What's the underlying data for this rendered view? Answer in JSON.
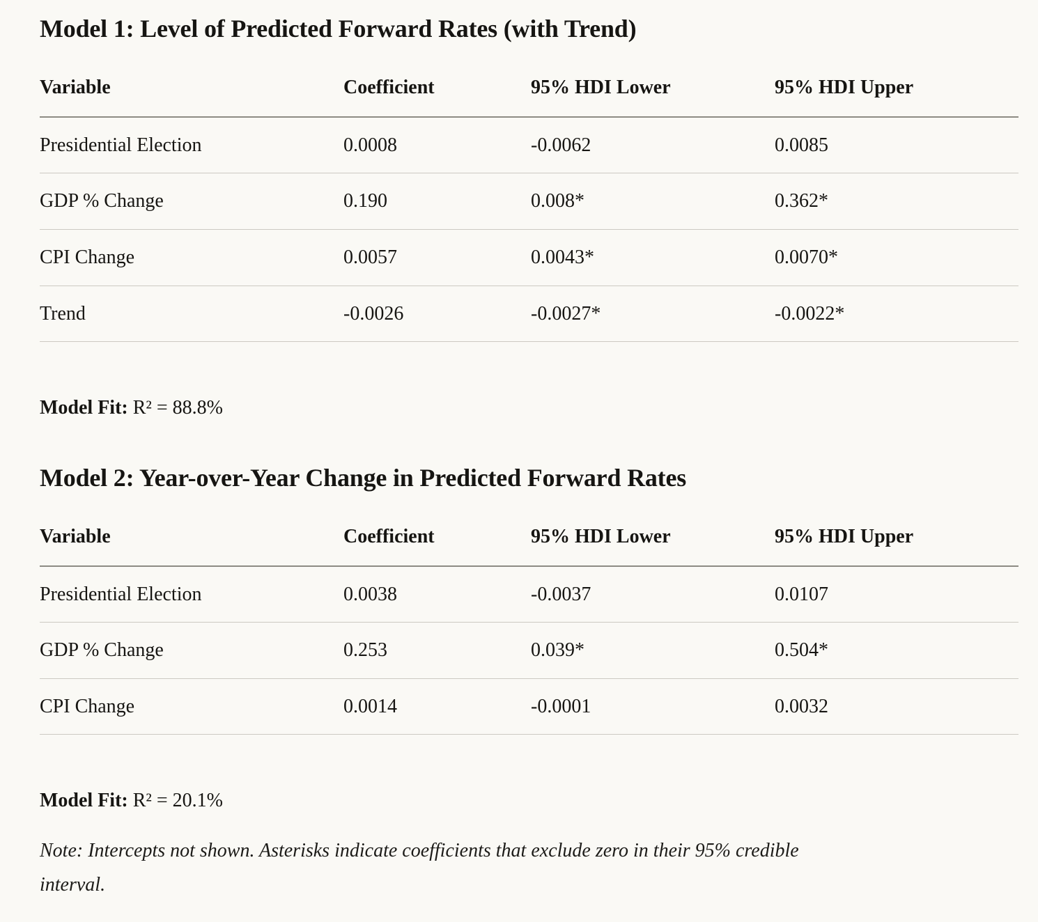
{
  "page": {
    "background_color": "#FAF9F5",
    "text_color": "#161512",
    "header_rule_color": "#8d8b83",
    "row_rule_color": "#ccc9c2"
  },
  "models": [
    {
      "title": "Model 1: Level of Predicted Forward Rates (with Trend)",
      "table": {
        "columns": [
          "Variable",
          "Coefficient",
          "95% HDI Lower",
          "95% HDI Upper"
        ],
        "rows": [
          [
            "Presidential Election",
            "0.0008",
            "-0.0062",
            "0.0085"
          ],
          [
            "GDP % Change",
            "0.190",
            "0.008*",
            "0.362*"
          ],
          [
            "CPI Change",
            "0.0057",
            "0.0043*",
            "0.0070*"
          ],
          [
            "Trend",
            "-0.0026",
            "-0.0027*",
            "-0.0022*"
          ]
        ]
      },
      "fit_label": "Model Fit:",
      "fit_value": "R² = 88.8%"
    },
    {
      "title": "Model 2: Year-over-Year Change in Predicted Forward Rates",
      "table": {
        "columns": [
          "Variable",
          "Coefficient",
          "95% HDI Lower",
          "95% HDI Upper"
        ],
        "rows": [
          [
            "Presidential Election",
            "0.0038",
            "-0.0037",
            "0.0107"
          ],
          [
            "GDP % Change",
            "0.253",
            "0.039*",
            "0.504*"
          ],
          [
            "CPI Change",
            "0.0014",
            "-0.0001",
            "0.0032"
          ]
        ]
      },
      "fit_label": "Model Fit:",
      "fit_value": "R² = 20.1%"
    }
  ],
  "note": "Note: Intercepts not shown. Asterisks indicate coefficients that exclude zero in their 95% credible interval."
}
